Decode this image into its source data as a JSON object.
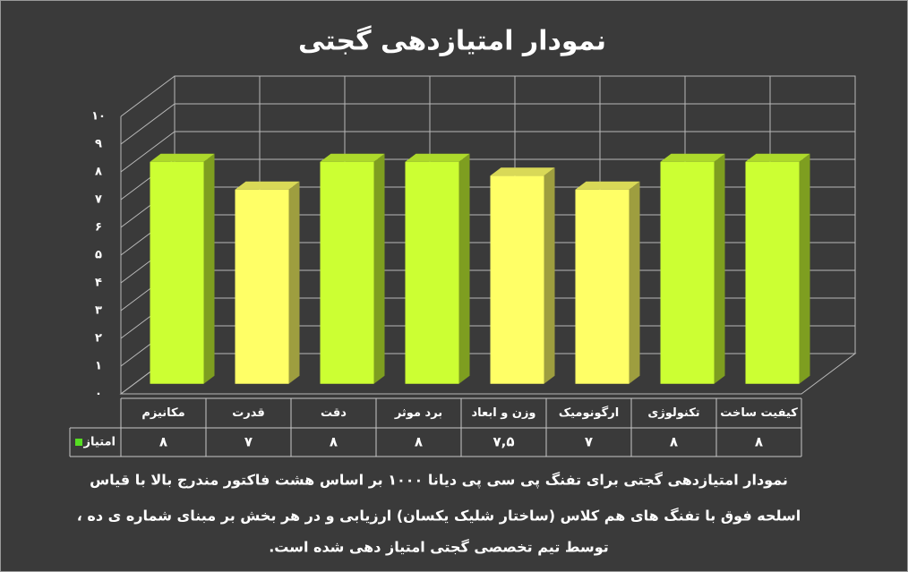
{
  "chart_data": {
    "type": "bar3d",
    "title": "نمودار امتیازدهی گجتی",
    "categories": [
      "مکانیزم",
      "قدرت",
      "دقت",
      "برد موثر",
      "وزن و ابعاد",
      "ارگونومیک",
      "تکنولوژی",
      "کیفیت ساخت"
    ],
    "series": [
      {
        "name": "امتیاز",
        "color": "#55dd22",
        "values": [
          8,
          7,
          8,
          8,
          7.5,
          7,
          8,
          8
        ],
        "value_labels": [
          "۸",
          "۷",
          "۸",
          "۸",
          "۷,۵",
          "۷",
          "۸",
          "۸"
        ],
        "colors": [
          "#ccff33",
          "#ffff66",
          "#ccff33",
          "#ccff33",
          "#ffff66",
          "#ffff66",
          "#ccff33",
          "#ccff33"
        ]
      }
    ],
    "ylim": [
      0,
      10
    ],
    "yticks": [
      {
        "value": 0,
        "label": "۰"
      },
      {
        "value": 1,
        "label": "۱"
      },
      {
        "value": 2,
        "label": "۲"
      },
      {
        "value": 3,
        "label": "۳"
      },
      {
        "value": 4,
        "label": "۴"
      },
      {
        "value": 5,
        "label": "۵"
      },
      {
        "value": 6,
        "label": "۶"
      },
      {
        "value": 7,
        "label": "۷"
      },
      {
        "value": 8,
        "label": "۸"
      },
      {
        "value": 9,
        "label": "۹"
      },
      {
        "value": 10,
        "label": "۱۰"
      }
    ],
    "grid": true,
    "caption": [
      "نمودار امتیازدهی گجتی برای تفنگ پی سی پی دیانا ۱۰۰۰ بر اساس هشت فاکتور مندرج بالا با قیاس",
      "اسلحه فوق با تفنگ های هم کلاس (ساختار شلیک یکسان) ارزیابی و در هر بخش بر مبنای شماره ی ده ،",
      "توسط تیم تخصصی گجتی امتیاز دهی شده است."
    ]
  }
}
